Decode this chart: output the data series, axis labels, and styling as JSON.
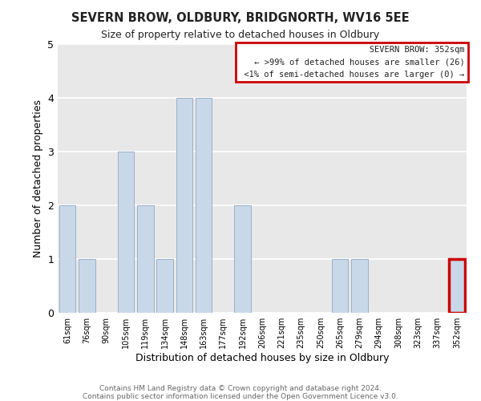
{
  "title": "SEVERN BROW, OLDBURY, BRIDGNORTH, WV16 5EE",
  "subtitle": "Size of property relative to detached houses in Oldbury",
  "xlabel": "Distribution of detached houses by size in Oldbury",
  "ylabel": "Number of detached properties",
  "bar_labels": [
    "61sqm",
    "76sqm",
    "90sqm",
    "105sqm",
    "119sqm",
    "134sqm",
    "148sqm",
    "163sqm",
    "177sqm",
    "192sqm",
    "206sqm",
    "221sqm",
    "235sqm",
    "250sqm",
    "265sqm",
    "279sqm",
    "294sqm",
    "308sqm",
    "323sqm",
    "337sqm",
    "352sqm"
  ],
  "bar_values": [
    2,
    1,
    0,
    3,
    2,
    1,
    4,
    4,
    0,
    2,
    0,
    0,
    0,
    0,
    1,
    1,
    0,
    0,
    0,
    0,
    1
  ],
  "bar_color": "#c8d8e8",
  "bar_edge_color": "#9ab0c8",
  "highlight_index": 20,
  "highlight_border_color": "#cc0000",
  "legend_title": "SEVERN BROW: 352sqm",
  "legend_line1": "← >99% of detached houses are smaller (26)",
  "legend_line2": "<1% of semi-detached houses are larger (0) →",
  "legend_box_color": "#cc0000",
  "ylim": [
    0,
    5
  ],
  "yticks": [
    0,
    1,
    2,
    3,
    4,
    5
  ],
  "footer1": "Contains HM Land Registry data © Crown copyright and database right 2024.",
  "footer2": "Contains public sector information licensed under the Open Government Licence v3.0.",
  "background_color": "#ffffff",
  "plot_bg_color": "#e8e8e8",
  "grid_color": "#ffffff"
}
